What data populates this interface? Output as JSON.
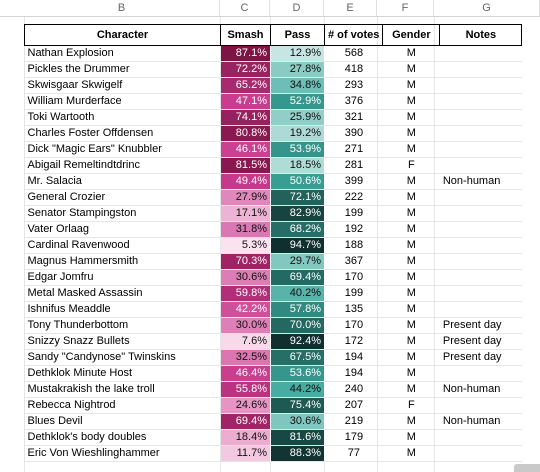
{
  "columns": [
    "B",
    "C",
    "D",
    "E",
    "F",
    "G"
  ],
  "headers": [
    "Character",
    "Smash",
    "Pass",
    "# of votes",
    "Gender",
    "Notes"
  ],
  "rows": [
    {
      "name": "Nathan Explosion",
      "smash": "87.1%",
      "pass": "12.9%",
      "votes": "568",
      "gender": "M",
      "notes": ""
    },
    {
      "name": "Pickles the Drummer",
      "smash": "72.2%",
      "pass": "27.8%",
      "votes": "418",
      "gender": "M",
      "notes": ""
    },
    {
      "name": "Skwisgaar Skwigelf",
      "smash": "65.2%",
      "pass": "34.8%",
      "votes": "293",
      "gender": "M",
      "notes": ""
    },
    {
      "name": "William Murderface",
      "smash": "47.1%",
      "pass": "52.9%",
      "votes": "376",
      "gender": "M",
      "notes": ""
    },
    {
      "name": "Toki Wartooth",
      "smash": "74.1%",
      "pass": "25.9%",
      "votes": "321",
      "gender": "M",
      "notes": ""
    },
    {
      "name": "Charles Foster Offdensen",
      "smash": "80.8%",
      "pass": "19.2%",
      "votes": "390",
      "gender": "M",
      "notes": ""
    },
    {
      "name": "Dick \"Magic Ears\" Knubbler",
      "smash": "46.1%",
      "pass": "53.9%",
      "votes": "271",
      "gender": "M",
      "notes": ""
    },
    {
      "name": "Abigail Remeltindtdrinc",
      "smash": "81.5%",
      "pass": "18.5%",
      "votes": "281",
      "gender": "F",
      "notes": ""
    },
    {
      "name": "Mr. Salacia",
      "smash": "49.4%",
      "pass": "50.6%",
      "votes": "399",
      "gender": "M",
      "notes": "Non-human"
    },
    {
      "name": "General Crozier",
      "smash": "27.9%",
      "pass": "72.1%",
      "votes": "222",
      "gender": "M",
      "notes": ""
    },
    {
      "name": "Senator Stampingston",
      "smash": "17.1%",
      "pass": "82.9%",
      "votes": "199",
      "gender": "M",
      "notes": ""
    },
    {
      "name": "Vater Orlaag",
      "smash": "31.8%",
      "pass": "68.2%",
      "votes": "192",
      "gender": "M",
      "notes": ""
    },
    {
      "name": "Cardinal Ravenwood",
      "smash": "5.3%",
      "pass": "94.7%",
      "votes": "188",
      "gender": "M",
      "notes": ""
    },
    {
      "name": "Magnus Hammersmith",
      "smash": "70.3%",
      "pass": "29.7%",
      "votes": "367",
      "gender": "M",
      "notes": ""
    },
    {
      "name": "Edgar Jomfru",
      "smash": "30.6%",
      "pass": "69.4%",
      "votes": "170",
      "gender": "M",
      "notes": ""
    },
    {
      "name": "Metal Masked Assassin",
      "smash": "59.8%",
      "pass": "40.2%",
      "votes": "199",
      "gender": "M",
      "notes": ""
    },
    {
      "name": "Ishnifus Meaddle",
      "smash": "42.2%",
      "pass": "57.8%",
      "votes": "135",
      "gender": "M",
      "notes": ""
    },
    {
      "name": "Tony Thunderbottom",
      "smash": "30.0%",
      "pass": "70.0%",
      "votes": "170",
      "gender": "M",
      "notes": "Present day"
    },
    {
      "name": "Snizzy Snazz Bullets",
      "smash": "7.6%",
      "pass": "92.4%",
      "votes": "172",
      "gender": "M",
      "notes": "Present day"
    },
    {
      "name": "Sandy \"Candynose\" Twinskins",
      "smash": "32.5%",
      "pass": "67.5%",
      "votes": "194",
      "gender": "M",
      "notes": "Present day"
    },
    {
      "name": "Dethklok Minute Host",
      "smash": "46.4%",
      "pass": "53.6%",
      "votes": "194",
      "gender": "M",
      "notes": ""
    },
    {
      "name": "Mustakrakish the lake troll",
      "smash": "55.8%",
      "pass": "44.2%",
      "votes": "240",
      "gender": "M",
      "notes": "Non-human"
    },
    {
      "name": "Rebecca Nightrod",
      "smash": "24.6%",
      "pass": "75.4%",
      "votes": "207",
      "gender": "F",
      "notes": ""
    },
    {
      "name": "Blues Devil",
      "smash": "69.4%",
      "pass": "30.6%",
      "votes": "219",
      "gender": "M",
      "notes": "Non-human"
    },
    {
      "name": "Dethklok's body doubles",
      "smash": "18.4%",
      "pass": "81.6%",
      "votes": "179",
      "gender": "M",
      "notes": ""
    },
    {
      "name": "Eric Von Wieshlinghammer",
      "smash": "11.7%",
      "pass": "88.3%",
      "votes": "77",
      "gender": "M",
      "notes": ""
    }
  ],
  "colors": {
    "smash_scale": [
      "#fbe3f0",
      "#c93a8f",
      "#7a1040"
    ],
    "pass_scale": [
      "#e6f4f3",
      "#3aa79c",
      "#10302f"
    ],
    "grid": "#e6e6e6",
    "header_border": "#000000"
  }
}
